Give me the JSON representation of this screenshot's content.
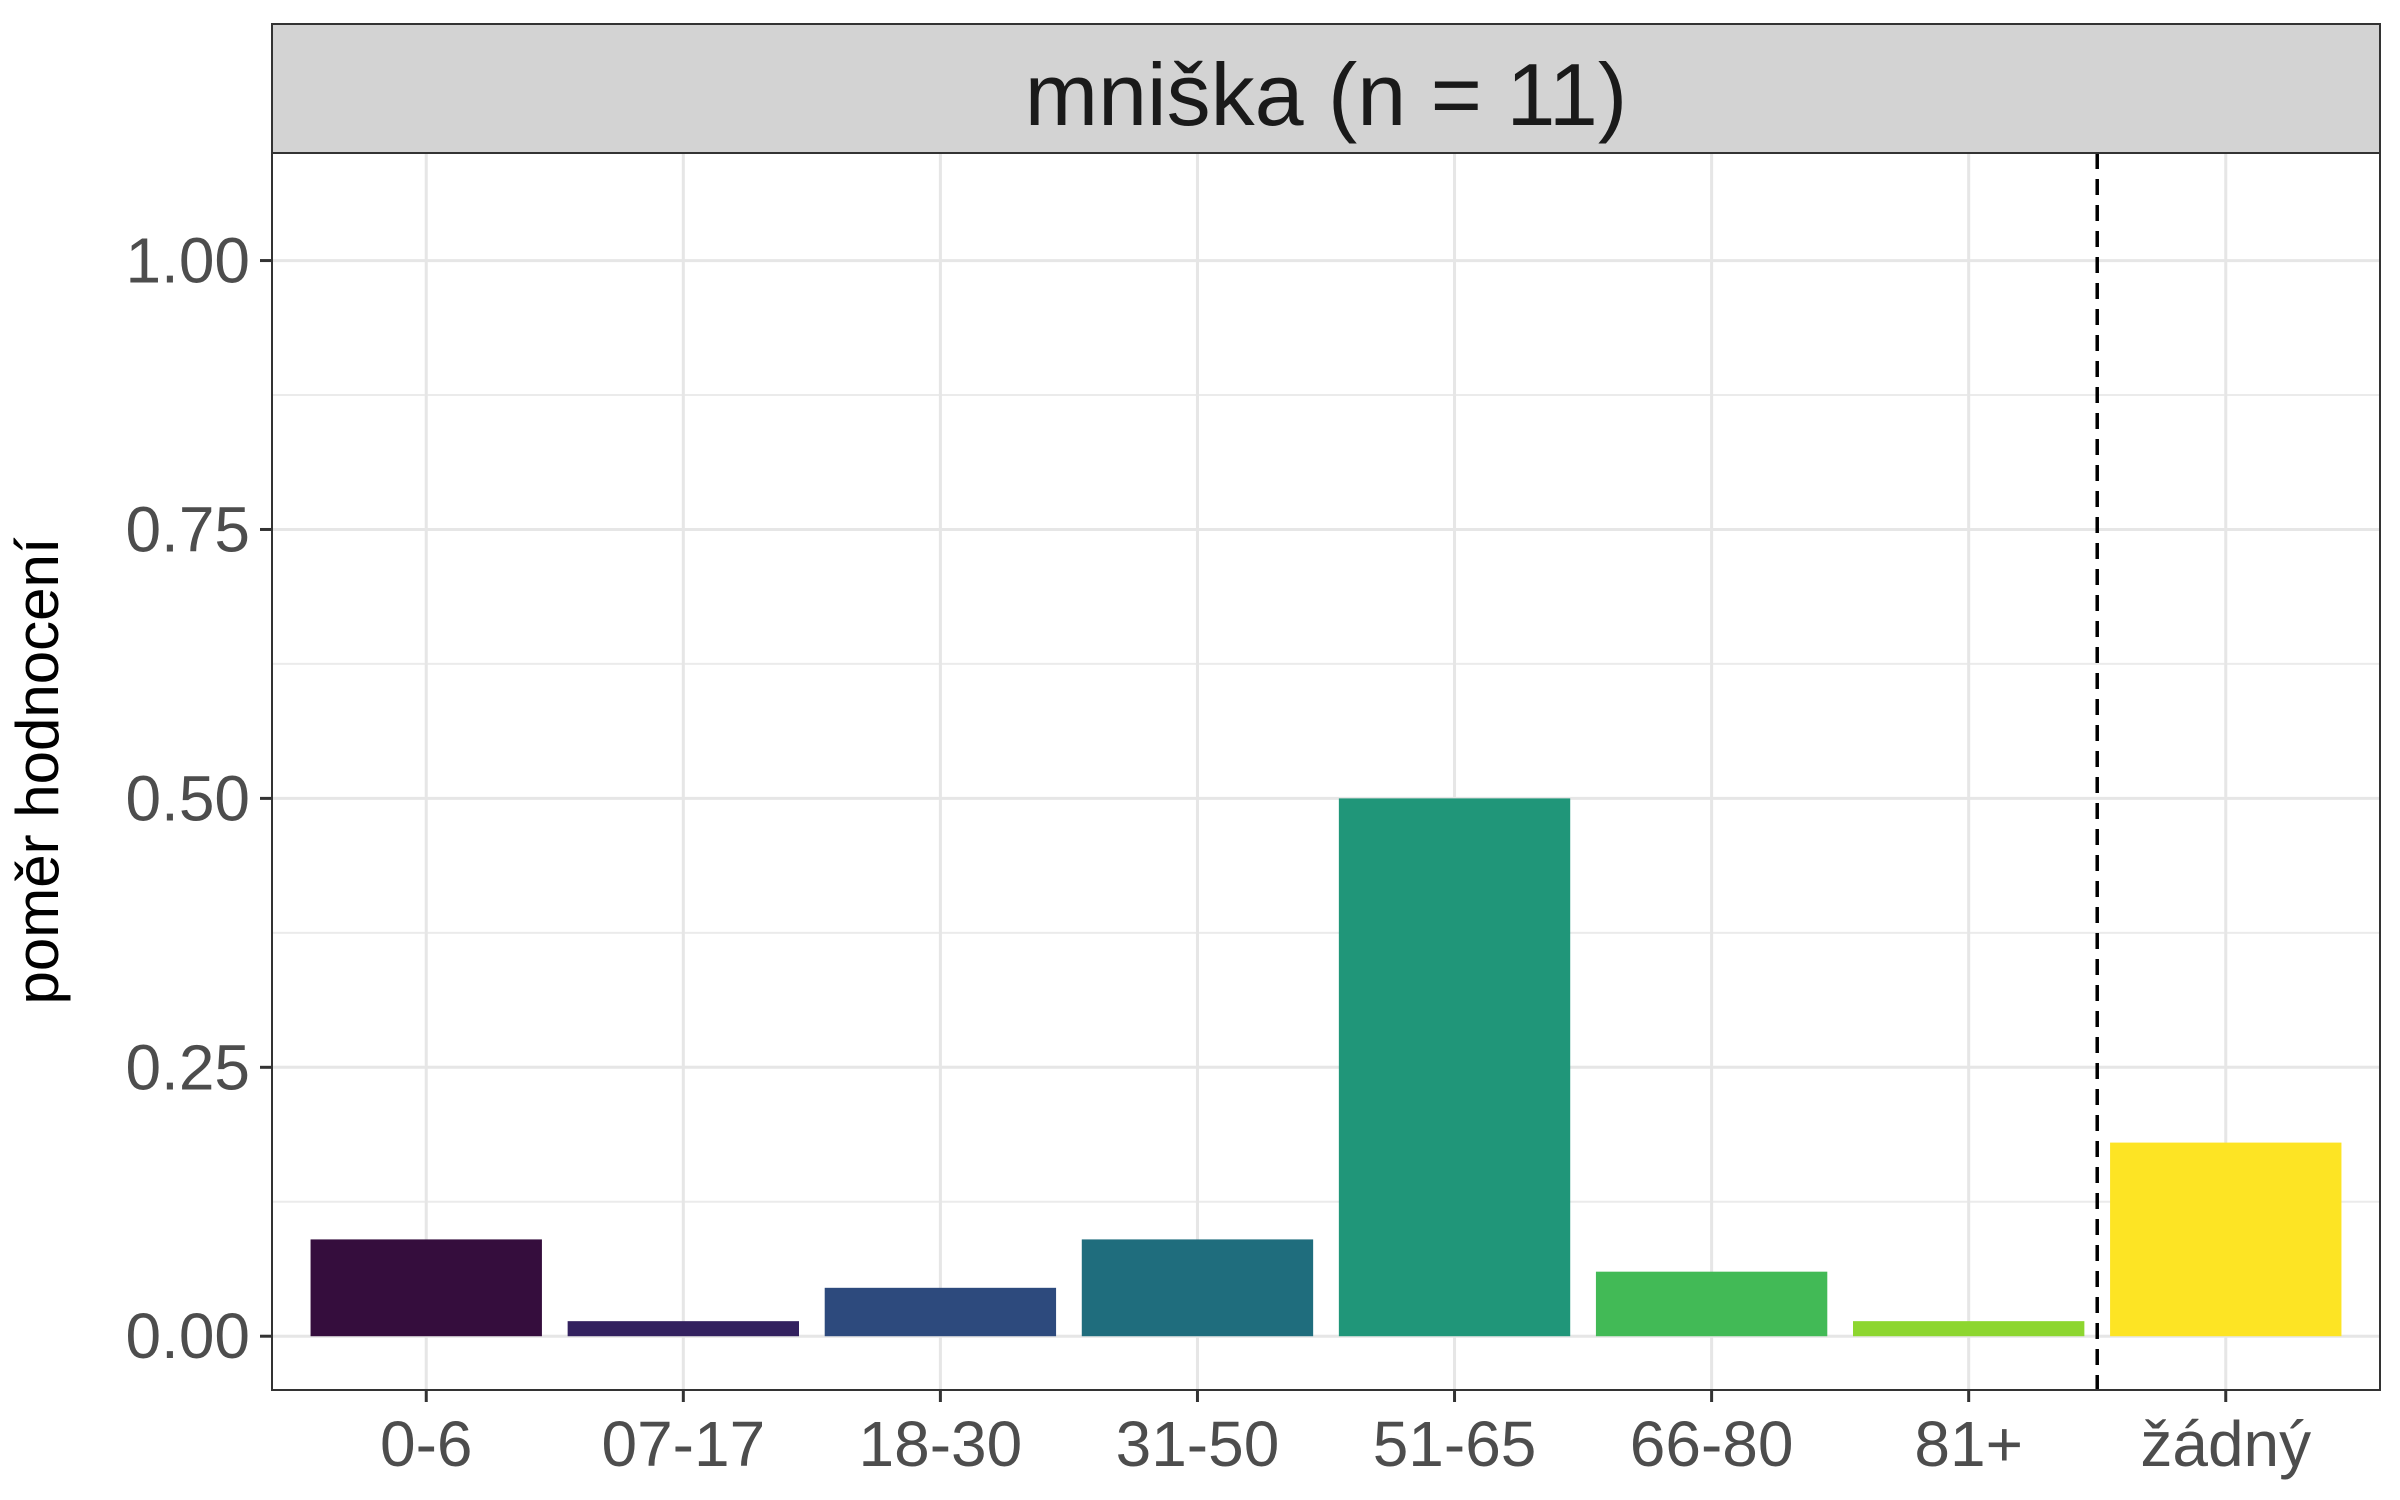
{
  "chart_data": {
    "type": "bar",
    "title": "mniška (n = 11)",
    "xlabel": "",
    "ylabel": "poměr hodnocení",
    "ylim": [
      -0.05,
      1.1
    ],
    "yticks": [
      0.0,
      0.25,
      0.5,
      0.75,
      1.0
    ],
    "ytick_labels": [
      "0.00",
      "0.25",
      "0.50",
      "0.75",
      "1.00"
    ],
    "categories": [
      "0-6",
      "07-17",
      "18-30",
      "31-50",
      "51-65",
      "66-80",
      "81+",
      "žádný"
    ],
    "values": [
      0.09,
      0.014,
      0.045,
      0.09,
      0.5,
      0.06,
      0.014,
      0.18
    ],
    "colors": [
      "#350d3d",
      "#33215f",
      "#2d4a7d",
      "#1f6d7d",
      "#209679",
      "#42ba56",
      "#8dd62f",
      "#fde424"
    ],
    "separator_after_category": "81+",
    "grid": true,
    "legend": "none"
  }
}
